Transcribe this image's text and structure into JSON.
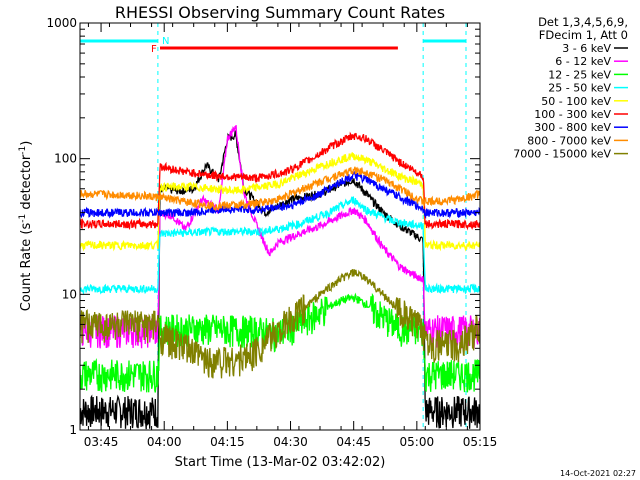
{
  "chart_data": {
    "type": "line",
    "title": "RHESSI Observing Summary Count Rates",
    "xlabel": "Start Time (13-Mar-02 03:42:02)",
    "ylabel_parts": [
      "Count Rate (s",
      "-1",
      " detector",
      "-1",
      ")"
    ],
    "ylog": true,
    "ylim": [
      1,
      1000
    ],
    "xlim_minutes": [
      -2,
      93
    ],
    "x_ticks": [
      {
        "t": 3,
        "label": "03:45"
      },
      {
        "t": 18,
        "label": "04:00"
      },
      {
        "t": 33,
        "label": "04:15"
      },
      {
        "t": 48,
        "label": "04:30"
      },
      {
        "t": 63,
        "label": "04:45"
      },
      {
        "t": 78,
        "label": "05:00"
      },
      {
        "t": 93,
        "label": "05:15"
      }
    ],
    "y_ticks": [
      {
        "v": 1,
        "label": "1"
      },
      {
        "v": 10,
        "label": "10"
      },
      {
        "v": 100,
        "label": "100"
      },
      {
        "v": 1000,
        "label": "1000"
      }
    ],
    "legend_header": [
      "Det 1,3,4,5,6,9,",
      "FDecim 1, Att 0"
    ],
    "legend_placement": "right",
    "footer_date": "14-Oct-2021 02:27",
    "night_intervals": [
      [
        -2,
        16.5
      ],
      [
        79.5,
        93
      ]
    ],
    "flag_markers": [
      {
        "label": "N",
        "t": 17,
        "color": "#00ffff"
      },
      {
        "label": "F",
        "t": 17,
        "color": "#ff0000"
      }
    ],
    "flag_bar": {
      "color": "#ff0000",
      "t": [
        17,
        73.5
      ]
    },
    "saa_bar": {
      "color": "#00ffff"
    },
    "series": [
      {
        "name": "3 - 6 keV",
        "color": "#000000",
        "points": [
          [
            -2,
            1.4
          ],
          [
            16.5,
            1.4
          ],
          [
            17,
            60
          ],
          [
            22,
            58
          ],
          [
            25,
            60
          ],
          [
            28,
            90
          ],
          [
            31,
            70
          ],
          [
            33,
            140
          ],
          [
            35,
            150
          ],
          [
            37,
            60
          ],
          [
            42,
            40
          ],
          [
            48,
            50
          ],
          [
            55,
            55
          ],
          [
            60,
            65
          ],
          [
            63,
            70
          ],
          [
            66,
            55
          ],
          [
            70,
            40
          ],
          [
            74,
            32
          ],
          [
            77,
            28
          ],
          [
            79.5,
            25
          ],
          [
            80,
            1.4
          ],
          [
            93,
            1.4
          ]
        ]
      },
      {
        "name": "6 - 12 keV",
        "color": "#ff00ff",
        "points": [
          [
            -2,
            5.5
          ],
          [
            16.5,
            5.5
          ],
          [
            17,
            40
          ],
          [
            20,
            38
          ],
          [
            23,
            30
          ],
          [
            27,
            50
          ],
          [
            31,
            42
          ],
          [
            33,
            140
          ],
          [
            35,
            175
          ],
          [
            37,
            55
          ],
          [
            40,
            32
          ],
          [
            43,
            20
          ],
          [
            45,
            24
          ],
          [
            50,
            28
          ],
          [
            55,
            32
          ],
          [
            60,
            38
          ],
          [
            63,
            42
          ],
          [
            66,
            35
          ],
          [
            70,
            22
          ],
          [
            74,
            16
          ],
          [
            77,
            14
          ],
          [
            79.5,
            13
          ],
          [
            80,
            5.5
          ],
          [
            93,
            5.5
          ]
        ]
      },
      {
        "name": "12 - 25 keV",
        "color": "#00ff00",
        "points": [
          [
            -2,
            2.6
          ],
          [
            16.5,
            2.6
          ],
          [
            17,
            5.6
          ],
          [
            30,
            5.6
          ],
          [
            40,
            5.4
          ],
          [
            45,
            5.2
          ],
          [
            50,
            6
          ],
          [
            55,
            7.5
          ],
          [
            60,
            9
          ],
          [
            63,
            9.5
          ],
          [
            66,
            8.5
          ],
          [
            70,
            6.8
          ],
          [
            74,
            5.6
          ],
          [
            79.5,
            5.4
          ],
          [
            80,
            2.6
          ],
          [
            93,
            2.6
          ]
        ]
      },
      {
        "name": "25 - 50 keV",
        "color": "#00ffff",
        "points": [
          [
            -2,
            11
          ],
          [
            16.5,
            11
          ],
          [
            17,
            28
          ],
          [
            30,
            29
          ],
          [
            42,
            29
          ],
          [
            50,
            33
          ],
          [
            57,
            40
          ],
          [
            62,
            48
          ],
          [
            63,
            50
          ],
          [
            66,
            42
          ],
          [
            72,
            35
          ],
          [
            76,
            33
          ],
          [
            79.5,
            32
          ],
          [
            80,
            11
          ],
          [
            93,
            11
          ]
        ]
      },
      {
        "name": "50 - 100 keV",
        "color": "#ffff00",
        "points": [
          [
            -2,
            23
          ],
          [
            16.5,
            23
          ],
          [
            17,
            62
          ],
          [
            25,
            62
          ],
          [
            35,
            58
          ],
          [
            45,
            65
          ],
          [
            52,
            80
          ],
          [
            58,
            95
          ],
          [
            63,
            105
          ],
          [
            66,
            98
          ],
          [
            70,
            85
          ],
          [
            75,
            72
          ],
          [
            79.5,
            65
          ],
          [
            80,
            23
          ],
          [
            93,
            23
          ]
        ]
      },
      {
        "name": "100 - 300 keV",
        "color": "#ff0000",
        "points": [
          [
            -2,
            33
          ],
          [
            16.5,
            33
          ],
          [
            17,
            88
          ],
          [
            23,
            80
          ],
          [
            30,
            75
          ],
          [
            40,
            72
          ],
          [
            47,
            80
          ],
          [
            53,
            100
          ],
          [
            58,
            125
          ],
          [
            63,
            148
          ],
          [
            66,
            140
          ],
          [
            70,
            115
          ],
          [
            75,
            90
          ],
          [
            79.5,
            75
          ],
          [
            80,
            33
          ],
          [
            93,
            33
          ]
        ]
      },
      {
        "name": "300 - 800 keV",
        "color": "#0000ff",
        "points": [
          [
            -2,
            40
          ],
          [
            16.5,
            40
          ],
          [
            17,
            40
          ],
          [
            25,
            40
          ],
          [
            32,
            43
          ],
          [
            40,
            42
          ],
          [
            48,
            45
          ],
          [
            55,
            55
          ],
          [
            60,
            68
          ],
          [
            63,
            75
          ],
          [
            66,
            70
          ],
          [
            70,
            60
          ],
          [
            75,
            50
          ],
          [
            79.5,
            43
          ],
          [
            80,
            40
          ],
          [
            93,
            40
          ]
        ]
      },
      {
        "name": "800 - 7000 keV",
        "color": "#ff8c00",
        "points": [
          [
            -2,
            55
          ],
          [
            10,
            54
          ],
          [
            16.5,
            52
          ],
          [
            17,
            52
          ],
          [
            23,
            48
          ],
          [
            30,
            45
          ],
          [
            38,
            46
          ],
          [
            45,
            50
          ],
          [
            52,
            62
          ],
          [
            58,
            74
          ],
          [
            63,
            82
          ],
          [
            66,
            80
          ],
          [
            70,
            70
          ],
          [
            75,
            58
          ],
          [
            79.5,
            48
          ],
          [
            80,
            48
          ],
          [
            88,
            50
          ],
          [
            93,
            55
          ]
        ]
      },
      {
        "name": "7000 - 15000 keV",
        "color": "#808000",
        "points": [
          [
            -2,
            6
          ],
          [
            16.5,
            6
          ],
          [
            17,
            5
          ],
          [
            22,
            4.2
          ],
          [
            28,
            3.3
          ],
          [
            35,
            3.3
          ],
          [
            38,
            3.5
          ],
          [
            42,
            4.5
          ],
          [
            48,
            6.5
          ],
          [
            55,
            10
          ],
          [
            60,
            13
          ],
          [
            63,
            14.5
          ],
          [
            66,
            13
          ],
          [
            70,
            10
          ],
          [
            74,
            7.5
          ],
          [
            78,
            6
          ],
          [
            82,
            4.3
          ],
          [
            88,
            4.3
          ],
          [
            93,
            5.8
          ]
        ]
      }
    ]
  }
}
